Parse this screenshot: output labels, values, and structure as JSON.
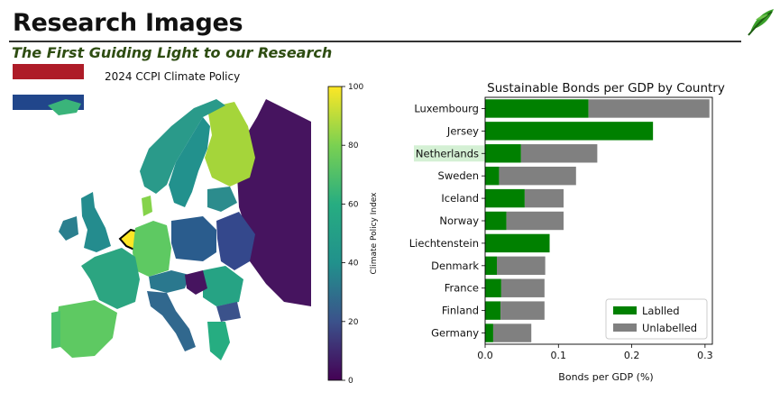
{
  "header": {
    "title": "Research Images",
    "subtitle": "The First Guiding Light to our Research"
  },
  "colors": {
    "accent_green": "#2e4d12",
    "flag_red": "#ae1c28",
    "flag_white": "#ffffff",
    "flag_blue": "#21468b",
    "labelled": "#008000",
    "unlabelled": "#808080",
    "highlight_bg": "#d4f0d4"
  },
  "map": {
    "title": "2024 CCPI Climate Policy",
    "colorbar_label": "Climate Policy Index",
    "colorbar_ticks": [
      "0",
      "20",
      "40",
      "60",
      "80",
      "100"
    ]
  },
  "chart_data": {
    "type": "bar",
    "orientation": "horizontal",
    "stacked": true,
    "title": "Sustainable Bonds per GDP by Country",
    "xlabel": "Bonds per GDP (%)",
    "ylabel": "",
    "xlim": [
      0,
      0.31
    ],
    "xticks": [
      "0.0",
      "0.1",
      "0.2",
      "0.3"
    ],
    "highlight_category": "Netherlands",
    "legend_position": "lower-right",
    "categories": [
      "Luxembourg",
      "Jersey",
      "Netherlands",
      "Sweden",
      "Iceland",
      "Norway",
      "Liechtenstein",
      "Denmark",
      "France",
      "Finland",
      "Germany"
    ],
    "series": [
      {
        "name": "Lablled",
        "values": [
          0.141,
          0.229,
          0.049,
          0.019,
          0.054,
          0.029,
          0.088,
          0.016,
          0.022,
          0.021,
          0.011
        ]
      },
      {
        "name": "Unlabelled",
        "values": [
          0.165,
          0,
          0.104,
          0.105,
          0.053,
          0.078,
          0,
          0.066,
          0.059,
          0.06,
          0.052
        ]
      }
    ]
  }
}
